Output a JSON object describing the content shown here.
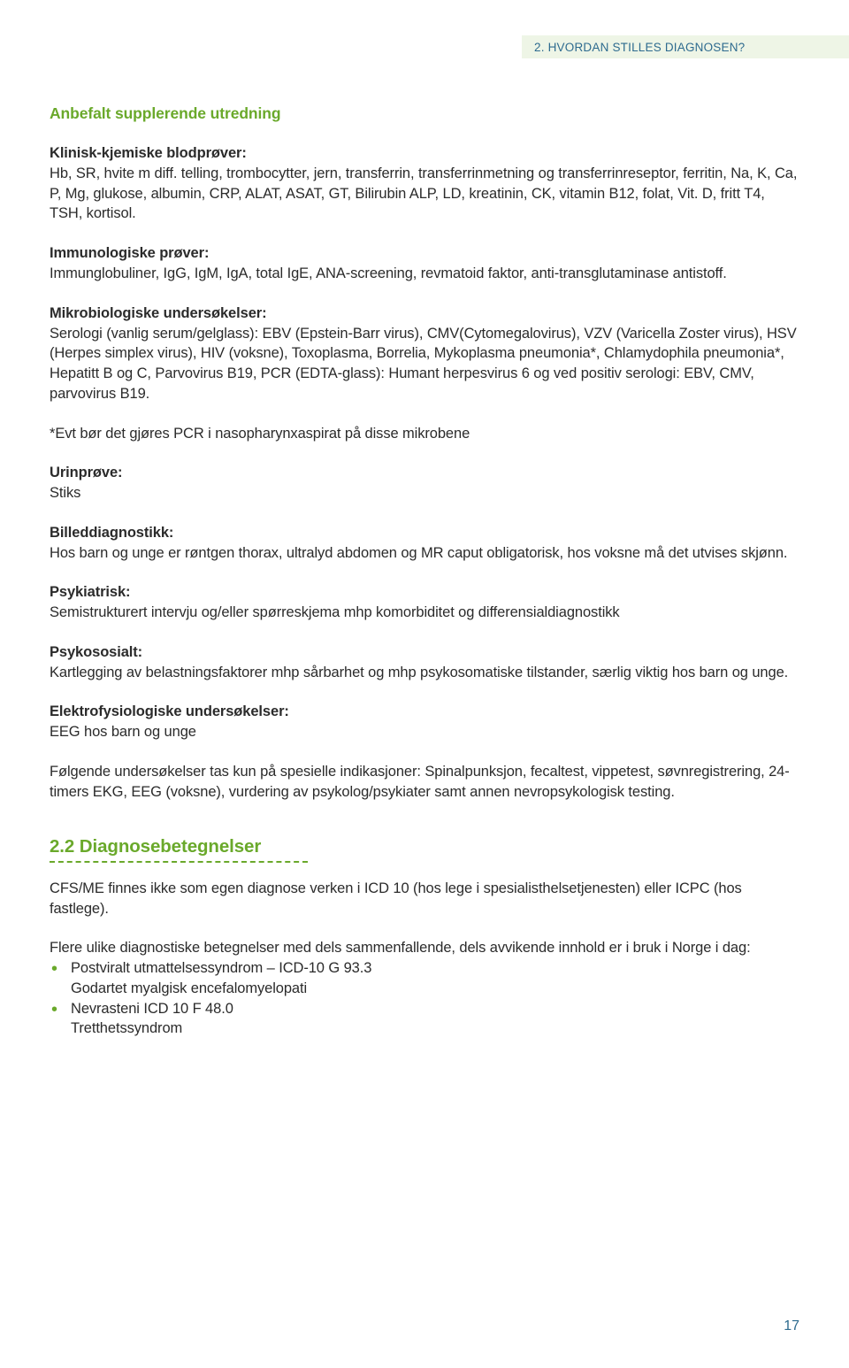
{
  "header": {
    "chapter_label": "2. HVORDAN STILLES DIAGNOSEN?",
    "background_color": "#eef5e6",
    "text_color": "#2e6b8f",
    "fontsize": 13.5
  },
  "title": {
    "text": "Anbefalt supplerende utredning",
    "color": "#6aa92b",
    "fontsize": 17.5,
    "weight": 600
  },
  "sections": {
    "klinisk": {
      "label": "Klinisk-kjemiske blodprøver:",
      "body": "Hb, SR, hvite m diff. telling, trombocytter, jern, transferrin, transferrinmetning og transferrinreseptor, ferritin, Na, K, Ca, P, Mg, glukose, albumin, CRP, ALAT, ASAT, GT, Bilirubin ALP, LD, kreatinin, CK, vitamin B12, folat, Vit. D, fritt T4, TSH, kortisol."
    },
    "immunologiske": {
      "label": "Immunologiske prøver:",
      "body": "Immunglobuliner, IgG, IgM, IgA, total IgE, ANA-screening, revmatoid faktor, anti-transglutaminase antistoff."
    },
    "mikrobiologiske": {
      "label": "Mikrobiologiske undersøkelser:",
      "body": "Serologi (vanlig serum/gelglass): EBV (Epstein-Barr virus), CMV(Cytomegalovirus), VZV (Varicella Zoster virus), HSV (Herpes simplex virus), HIV (voksne), Toxoplasma, Borrelia, Mykoplasma pneumonia*, Chlamydophila pneumonia*, Hepatitt B og C, Parvovirus B19, PCR (EDTA-glass): Humant herpesvirus 6 og ved positiv serologi: EBV, CMV, parvovirus B19."
    },
    "pcr_note": "*Evt bør det gjøres PCR i nasopharynxaspirat på disse mikrobene",
    "urin": {
      "label": "Urinprøve:",
      "body": "Stiks"
    },
    "billed": {
      "label": "Billeddiagnostikk:",
      "body": "Hos barn og unge er røntgen thorax, ultralyd abdomen og MR caput obligatorisk, hos voksne må det utvises skjønn."
    },
    "psykiatrisk": {
      "label": "Psykiatrisk:",
      "body": "Semistrukturert intervju og/eller spørreskjema mhp komorbiditet og differensialdiagnostikk"
    },
    "psykososialt": {
      "label": "Psykososialt:",
      "body": "Kartlegging av belastningsfaktorer mhp sårbarhet og mhp psykosomatiske tilstander, særlig viktig hos barn og unge."
    },
    "elektro": {
      "label": "Elektrofysiologiske undersøkelser:",
      "body": "EEG hos barn og unge"
    },
    "followup": "Følgende undersøkelser tas kun på spesielle indikasjoner: Spinalpunksjon, fecaltest, vippetest, søvnregistrering, 24-timers EKG, EEG (voksne), vurdering av psykolog/psykiater samt annen nevropsykologisk testing."
  },
  "section_2_2": {
    "heading": "2.2  Diagnosebetegnelser",
    "heading_color": "#6aa92b",
    "heading_fontsize": 20.5,
    "underline_color": "#6aa92b",
    "underline_style": "dashed",
    "para1": "CFS/ME finnes ikke som egen diagnose verken i ICD 10 (hos lege i spesialisthelsetjenesten) eller ICPC (hos fastlege).",
    "para2": "Flere ulike diagnostiske betegnelser med dels sammenfallende, dels avvikende innhold er i bruk i Norge i dag:",
    "bullet_color": "#6aa92b",
    "bullets": [
      {
        "line1": "Postviralt utmattelsessyndrom – ICD-10 G 93.3",
        "line2": "Godartet myalgisk encefalomyelopati"
      },
      {
        "line1": "Nevrasteni ICD 10 F 48.0",
        "line2": "Tretthetssyndrom"
      }
    ]
  },
  "page_number": "17",
  "page_number_color": "#2e6b8f",
  "body_text_color": "#2b2b2b",
  "body_fontsize": 16.5,
  "background_color": "#ffffff",
  "label_weight": 700
}
